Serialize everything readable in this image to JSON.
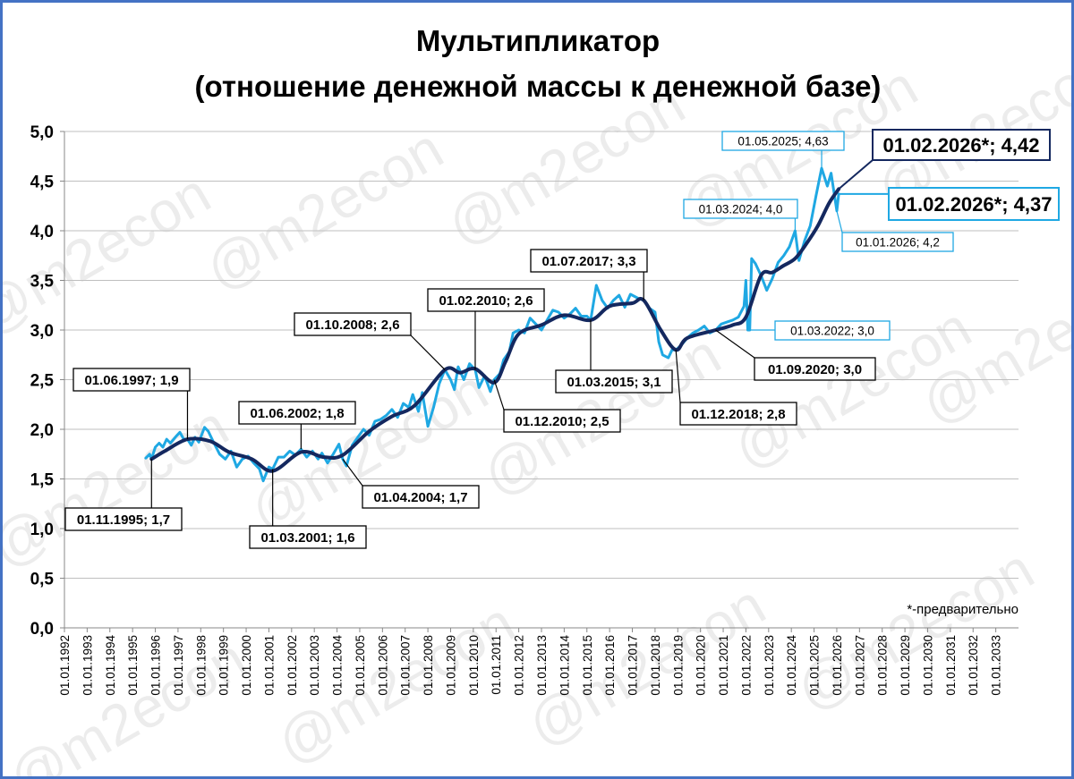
{
  "chart_data": {
    "type": "line",
    "title": [
      "Мультипликатор",
      "(отношение денежной массы к денежной базе)"
    ],
    "xlabel": "",
    "ylabel": "",
    "x_tick_labels": [
      "01.01.1992",
      "01.01.1993",
      "01.01.1994",
      "01.01.1995",
      "01.01.1996",
      "01.01.1997",
      "01.01.1998",
      "01.01.1999",
      "01.01.2000",
      "01.01.2001",
      "01.01.2002",
      "01.01.2003",
      "01.01.2004",
      "01.01.2005",
      "01.01.2006",
      "01.01.2007",
      "01.01.2008",
      "01.01.2009",
      "01.01.2010",
      "01.01.2011",
      "01.01.2012",
      "01.01.2013",
      "01.01.2014",
      "01.01.2015",
      "01.01.2016",
      "01.01.2017",
      "01.01.2018",
      "01.01.2019",
      "01.01.2020",
      "01.01.2021",
      "01.01.2022",
      "01.01.2023",
      "01.01.2024",
      "01.01.2025",
      "01.01.2026",
      "01.01.2027",
      "01.01.2028",
      "01.01.2029",
      "01.01.2030",
      "01.01.2031",
      "01.01.2032",
      "01.01.2033"
    ],
    "x_range": [
      "01.01.1992",
      "01.01.2033"
    ],
    "y_tick_labels": [
      "0,0",
      "0,5",
      "1,0",
      "1,5",
      "2,0",
      "2,5",
      "3,0",
      "3,5",
      "4,0",
      "4,5",
      "5,0"
    ],
    "ylim": [
      0,
      5
    ],
    "grid": "horizontal",
    "legend": "none",
    "colors": {
      "monthly": "#1fa8e3",
      "smoothed": "#14285f",
      "frame": "#4472c4",
      "callout_border_dark": "#000000"
    },
    "series": [
      {
        "style": "monthly",
        "points": [
          [
            "1995-08",
            1.71
          ],
          [
            "1995-10",
            1.75
          ],
          [
            "1995-11",
            1.7
          ],
          [
            "1996-01",
            1.82
          ],
          [
            "1996-03",
            1.86
          ],
          [
            "1996-05",
            1.82
          ],
          [
            "1996-07",
            1.9
          ],
          [
            "1996-09",
            1.86
          ],
          [
            "1996-12",
            1.93
          ],
          [
            "1997-02",
            1.97
          ],
          [
            "1997-04",
            1.9
          ],
          [
            "1997-06",
            1.9
          ],
          [
            "1997-08",
            1.84
          ],
          [
            "1997-10",
            1.92
          ],
          [
            "1997-12",
            1.87
          ],
          [
            "1998-03",
            2.02
          ],
          [
            "1998-05",
            1.98
          ],
          [
            "1998-08",
            1.86
          ],
          [
            "1998-11",
            1.75
          ],
          [
            "1999-02",
            1.7
          ],
          [
            "1999-05",
            1.78
          ],
          [
            "1999-08",
            1.62
          ],
          [
            "1999-11",
            1.7
          ],
          [
            "2000-02",
            1.73
          ],
          [
            "2000-05",
            1.66
          ],
          [
            "2000-08",
            1.6
          ],
          [
            "2000-10",
            1.48
          ],
          [
            "2001-01",
            1.62
          ],
          [
            "2001-03",
            1.6
          ],
          [
            "2001-06",
            1.72
          ],
          [
            "2001-09",
            1.72
          ],
          [
            "2001-12",
            1.78
          ],
          [
            "2002-03",
            1.74
          ],
          [
            "2002-06",
            1.8
          ],
          [
            "2002-09",
            1.72
          ],
          [
            "2002-12",
            1.78
          ],
          [
            "2003-03",
            1.7
          ],
          [
            "2003-05",
            1.76
          ],
          [
            "2003-08",
            1.66
          ],
          [
            "2003-11",
            1.75
          ],
          [
            "2004-02",
            1.85
          ],
          [
            "2004-04",
            1.7
          ],
          [
            "2004-06",
            1.63
          ],
          [
            "2004-09",
            1.84
          ],
          [
            "2004-12",
            1.92
          ],
          [
            "2005-03",
            2.0
          ],
          [
            "2005-06",
            1.94
          ],
          [
            "2005-09",
            2.08
          ],
          [
            "2005-12",
            2.1
          ],
          [
            "2006-03",
            2.14
          ],
          [
            "2006-06",
            2.2
          ],
          [
            "2006-09",
            2.12
          ],
          [
            "2006-12",
            2.26
          ],
          [
            "2007-03",
            2.22
          ],
          [
            "2007-05",
            2.35
          ],
          [
            "2007-08",
            2.18
          ],
          [
            "2007-10",
            2.37
          ],
          [
            "2008-01",
            2.03
          ],
          [
            "2008-04",
            2.22
          ],
          [
            "2008-07",
            2.46
          ],
          [
            "2008-10",
            2.6
          ],
          [
            "2009-01",
            2.5
          ],
          [
            "2009-03",
            2.4
          ],
          [
            "2009-05",
            2.63
          ],
          [
            "2009-08",
            2.5
          ],
          [
            "2009-11",
            2.66
          ],
          [
            "2010-02",
            2.6
          ],
          [
            "2010-04",
            2.42
          ],
          [
            "2010-07",
            2.54
          ],
          [
            "2010-10",
            2.38
          ],
          [
            "2010-12",
            2.5
          ],
          [
            "2011-03",
            2.56
          ],
          [
            "2011-05",
            2.7
          ],
          [
            "2011-08",
            2.78
          ],
          [
            "2011-10",
            2.97
          ],
          [
            "2012-01",
            3.0
          ],
          [
            "2012-04",
            2.97
          ],
          [
            "2012-07",
            3.12
          ],
          [
            "2012-10",
            3.06
          ],
          [
            "2013-01",
            3.0
          ],
          [
            "2013-04",
            3.1
          ],
          [
            "2013-07",
            3.2
          ],
          [
            "2013-10",
            3.18
          ],
          [
            "2014-01",
            3.12
          ],
          [
            "2014-04",
            3.16
          ],
          [
            "2014-07",
            3.22
          ],
          [
            "2014-10",
            3.14
          ],
          [
            "2015-01",
            3.14
          ],
          [
            "2015-03",
            3.1
          ],
          [
            "2015-06",
            3.45
          ],
          [
            "2015-09",
            3.3
          ],
          [
            "2015-12",
            3.22
          ],
          [
            "2016-03",
            3.3
          ],
          [
            "2016-06",
            3.35
          ],
          [
            "2016-09",
            3.23
          ],
          [
            "2016-12",
            3.36
          ],
          [
            "2017-04",
            3.32
          ],
          [
            "2017-07",
            3.3
          ],
          [
            "2017-10",
            3.22
          ],
          [
            "2018-01",
            3.18
          ],
          [
            "2018-03",
            2.88
          ],
          [
            "2018-05",
            2.75
          ],
          [
            "2018-08",
            2.72
          ],
          [
            "2018-10",
            2.8
          ],
          [
            "2018-12",
            2.8
          ],
          [
            "2019-03",
            2.85
          ],
          [
            "2019-06",
            2.92
          ],
          [
            "2019-09",
            2.97
          ],
          [
            "2019-12",
            3.0
          ],
          [
            "2020-03",
            3.04
          ],
          [
            "2020-06",
            2.97
          ],
          [
            "2020-09",
            3.0
          ],
          [
            "2020-12",
            3.06
          ],
          [
            "2021-03",
            3.08
          ],
          [
            "2021-06",
            3.1
          ],
          [
            "2021-09",
            3.13
          ],
          [
            "2021-12",
            3.24
          ],
          [
            "2022-01",
            3.5
          ],
          [
            "2022-02",
            3.0
          ],
          [
            "2022-03",
            3.0
          ],
          [
            "2022-04",
            3.72
          ],
          [
            "2022-06",
            3.67
          ],
          [
            "2022-09",
            3.55
          ],
          [
            "2022-12",
            3.4
          ],
          [
            "2023-03",
            3.52
          ],
          [
            "2023-06",
            3.68
          ],
          [
            "2023-09",
            3.75
          ],
          [
            "2023-12",
            3.84
          ],
          [
            "2024-03",
            4.0
          ],
          [
            "2024-05",
            3.7
          ],
          [
            "2024-08",
            3.9
          ],
          [
            "2024-11",
            4.05
          ],
          [
            "2025-02",
            4.35
          ],
          [
            "2025-05",
            4.63
          ],
          [
            "2025-08",
            4.45
          ],
          [
            "2025-10",
            4.58
          ],
          [
            "2026-01",
            4.2
          ],
          [
            "2026-02",
            4.37
          ]
        ]
      },
      {
        "style": "smoothed",
        "points": [
          [
            "1995-11",
            1.7
          ],
          [
            "1996-06",
            1.78
          ],
          [
            "1997-06",
            1.9
          ],
          [
            "1998-06",
            1.88
          ],
          [
            "1999-04",
            1.77
          ],
          [
            "2000-04",
            1.7
          ],
          [
            "2001-03",
            1.58
          ],
          [
            "2002-06",
            1.77
          ],
          [
            "2003-06",
            1.72
          ],
          [
            "2004-04",
            1.74
          ],
          [
            "2005-06",
            1.98
          ],
          [
            "2006-06",
            2.13
          ],
          [
            "2007-06",
            2.24
          ],
          [
            "2008-10",
            2.6
          ],
          [
            "2009-06",
            2.57
          ],
          [
            "2010-02",
            2.61
          ],
          [
            "2010-12",
            2.47
          ],
          [
            "2011-06",
            2.68
          ],
          [
            "2012-01",
            2.96
          ],
          [
            "2013-01",
            3.05
          ],
          [
            "2014-01",
            3.15
          ],
          [
            "2015-03",
            3.1
          ],
          [
            "2016-01",
            3.24
          ],
          [
            "2017-01",
            3.27
          ],
          [
            "2017-07",
            3.3
          ],
          [
            "2018-04",
            3.0
          ],
          [
            "2018-12",
            2.8
          ],
          [
            "2019-06",
            2.92
          ],
          [
            "2020-09",
            3.0
          ],
          [
            "2021-06",
            3.05
          ],
          [
            "2022-01",
            3.13
          ],
          [
            "2022-09",
            3.55
          ],
          [
            "2023-03",
            3.58
          ],
          [
            "2023-09",
            3.65
          ],
          [
            "2024-03",
            3.72
          ],
          [
            "2024-09",
            3.87
          ],
          [
            "2025-03",
            4.05
          ],
          [
            "2025-09",
            4.28
          ],
          [
            "2026-02",
            4.42
          ]
        ]
      }
    ],
    "annotations": [
      {
        "text": "01.11.1995; 1,7",
        "date": "1995-11",
        "value": 1.7,
        "color": "#000000",
        "place": "below-left"
      },
      {
        "text": "01.06.1997; 1,9",
        "date": "1997-06",
        "value": 1.9,
        "color": "#000000",
        "place": "above-left"
      },
      {
        "text": "01.03.2001; 1,6",
        "date": "2001-03",
        "value": 1.6,
        "color": "#000000",
        "place": "below"
      },
      {
        "text": "01.06.2002; 1,8",
        "date": "2002-06",
        "value": 1.8,
        "color": "#000000",
        "place": "above"
      },
      {
        "text": "01.04.2004; 1,7",
        "date": "2004-04",
        "value": 1.7,
        "color": "#000000",
        "place": "below-right"
      },
      {
        "text": "01.10.2008; 2,6",
        "date": "2008-10",
        "value": 2.6,
        "color": "#000000",
        "place": "above-left"
      },
      {
        "text": "01.02.2010; 2,6",
        "date": "2010-02",
        "value": 2.6,
        "color": "#000000",
        "place": "above"
      },
      {
        "text": "01.12.2010; 2,5",
        "date": "2010-12",
        "value": 2.5,
        "color": "#000000",
        "place": "below"
      },
      {
        "text": "01.03.2015; 3,1",
        "date": "2015-03",
        "value": 3.1,
        "color": "#000000",
        "place": "below"
      },
      {
        "text": "01.07.2017; 3,3",
        "date": "2017-07",
        "value": 3.3,
        "color": "#000000",
        "place": "above-left"
      },
      {
        "text": "01.12.2018; 2,8",
        "date": "2018-12",
        "value": 2.8,
        "color": "#000000",
        "place": "below"
      },
      {
        "text": "01.09.2020; 3,0",
        "date": "2020-09",
        "value": 3.0,
        "color": "#000000",
        "place": "below-right"
      },
      {
        "text": "01.03.2022; 3,0",
        "date": "2022-03",
        "value": 3.0,
        "color": "#1fa8e3",
        "place": "right"
      },
      {
        "text": "01.03.2024; 4,0",
        "date": "2024-03",
        "value": 4.0,
        "color": "#1fa8e3",
        "place": "left"
      },
      {
        "text": "01.05.2025; 4,63",
        "date": "2025-05",
        "value": 4.63,
        "color": "#1fa8e3",
        "place": "above-left"
      },
      {
        "text": "01.01.2026; 4,2",
        "date": "2026-01",
        "value": 4.2,
        "color": "#1fa8e3",
        "place": "below-right"
      },
      {
        "text": "01.02.2026*; 4,42",
        "date": "2026-02",
        "value": 4.42,
        "color": "#14285f",
        "place": "above-right",
        "emphasis": "large"
      },
      {
        "text": "01.02.2026*; 4,37",
        "date": "2026-02",
        "value": 4.37,
        "color": "#1fa8e3",
        "place": "right",
        "emphasis": "large"
      }
    ],
    "note": "*-предварительно",
    "watermark": "@m2econ"
  }
}
